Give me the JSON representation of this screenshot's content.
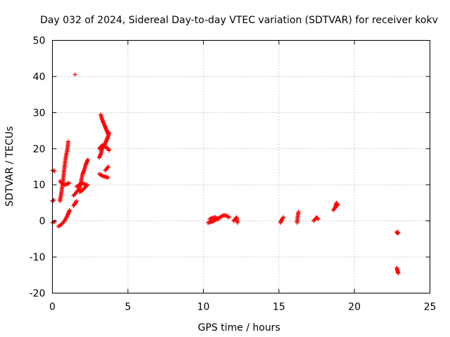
{
  "chart_data": {
    "type": "scatter",
    "title": "Day 032 of 2024, Sidereal Day-to-day VTEC variation (SDTVAR) for receiver kokv",
    "xlabel": "GPS time / hours",
    "ylabel": "SDTVAR / TECUs",
    "xlim": [
      0,
      25
    ],
    "ylim": [
      -20,
      50
    ],
    "xticks": [
      "0",
      "5",
      "10",
      "15",
      "20",
      "25"
    ],
    "yticks": [
      "-20",
      "-10",
      "0",
      "10",
      "20",
      "30",
      "40",
      "50"
    ],
    "grid": true,
    "marker": "plus",
    "color": "#ff0000",
    "series": [
      {
        "segments": [
          [
            [
              0.0,
              14.0
            ],
            [
              0.15,
              13.8
            ]
          ],
          [
            [
              0.0,
              5.5
            ],
            [
              0.1,
              5.8
            ]
          ],
          [
            [
              0.0,
              -0.5
            ],
            [
              0.15,
              -0.2
            ]
          ],
          [
            [
              0.4,
              -1.5
            ],
            [
              0.6,
              -1.0
            ],
            [
              0.8,
              0.0
            ],
            [
              1.0,
              1.5
            ],
            [
              1.1,
              2.5
            ],
            [
              1.15,
              3.0
            ]
          ],
          [
            [
              0.5,
              5.5
            ],
            [
              0.6,
              8.0
            ],
            [
              0.7,
              11.0
            ],
            [
              0.8,
              15.0
            ],
            [
              0.9,
              18.0
            ],
            [
              1.0,
              20.0
            ],
            [
              1.05,
              22.0
            ]
          ],
          [
            [
              0.5,
              11.0
            ],
            [
              0.6,
              10.5
            ],
            [
              0.8,
              10.0
            ],
            [
              1.0,
              10.2
            ],
            [
              1.1,
              10.5
            ]
          ],
          [
            [
              1.5,
              40.5
            ]
          ],
          [
            [
              1.4,
              4.2
            ],
            [
              1.5,
              4.8
            ],
            [
              1.6,
              5.5
            ]
          ],
          [
            [
              1.4,
              7.0
            ],
            [
              1.6,
              8.0
            ],
            [
              1.8,
              9.0
            ],
            [
              1.9,
              11.0
            ],
            [
              2.0,
              13.0
            ],
            [
              2.1,
              14.0
            ],
            [
              2.2,
              15.5
            ],
            [
              2.3,
              16.5
            ],
            [
              2.35,
              17.0
            ]
          ],
          [
            [
              1.6,
              9.5
            ],
            [
              1.8,
              10.0
            ],
            [
              2.0,
              10.5
            ],
            [
              2.2,
              10.0
            ],
            [
              2.3,
              9.8
            ]
          ],
          [
            [
              1.8,
              8.0
            ],
            [
              2.0,
              8.5
            ],
            [
              2.2,
              9.5
            ],
            [
              2.3,
              10.0
            ]
          ],
          [
            [
              3.1,
              17.5
            ],
            [
              3.2,
              18.5
            ],
            [
              3.3,
              20.0
            ],
            [
              3.4,
              20.5
            ],
            [
              3.5,
              21.5
            ],
            [
              3.6,
              22.5
            ],
            [
              3.7,
              23.5
            ],
            [
              3.75,
              24.5
            ]
          ],
          [
            [
              3.1,
              20.0
            ],
            [
              3.3,
              21.0
            ],
            [
              3.5,
              20.5
            ],
            [
              3.7,
              20.0
            ],
            [
              3.75,
              19.5
            ]
          ],
          [
            [
              3.2,
              29.5
            ],
            [
              3.3,
              28.0
            ],
            [
              3.4,
              27.0
            ],
            [
              3.5,
              26.0
            ],
            [
              3.6,
              25.0
            ],
            [
              3.7,
              24.0
            ]
          ],
          [
            [
              3.1,
              13.0
            ],
            [
              3.3,
              12.5
            ],
            [
              3.5,
              12.2
            ],
            [
              3.7,
              12.0
            ]
          ],
          [
            [
              3.5,
              14.0
            ],
            [
              3.6,
              14.5
            ],
            [
              3.7,
              15.0
            ]
          ],
          [
            [
              10.3,
              -0.5
            ],
            [
              10.5,
              -0.3
            ],
            [
              10.7,
              0.0
            ],
            [
              10.9,
              0.5
            ],
            [
              11.1,
              1.0
            ],
            [
              11.3,
              1.5
            ],
            [
              11.5,
              1.5
            ],
            [
              11.7,
              1.0
            ]
          ],
          [
            [
              10.4,
              0.5
            ],
            [
              10.6,
              0.8
            ],
            [
              10.8,
              1.0
            ],
            [
              11.0,
              0.5
            ]
          ],
          [
            [
              12.0,
              0.0
            ],
            [
              12.1,
              0.5
            ],
            [
              12.2,
              1.0
            ],
            [
              12.25,
              -0.5
            ]
          ],
          [
            [
              15.1,
              -0.5
            ],
            [
              15.2,
              0.5
            ],
            [
              15.3,
              1.0
            ]
          ],
          [
            [
              16.2,
              -0.5
            ],
            [
              16.25,
              1.5
            ],
            [
              16.3,
              2.5
            ]
          ],
          [
            [
              17.3,
              0.0
            ],
            [
              17.4,
              0.5
            ],
            [
              17.5,
              1.0
            ],
            [
              17.6,
              0.5
            ]
          ],
          [
            [
              18.6,
              3.0
            ],
            [
              18.7,
              3.5
            ],
            [
              18.8,
              4.0
            ],
            [
              18.9,
              4.5
            ],
            [
              18.8,
              5.0
            ],
            [
              18.7,
              3.5
            ]
          ],
          [
            [
              22.8,
              -3.0
            ],
            [
              22.85,
              -3.5
            ],
            [
              22.9,
              -3.2
            ]
          ],
          [
            [
              22.8,
              -13.0
            ],
            [
              22.85,
              -13.8
            ],
            [
              22.9,
              -14.5
            ]
          ]
        ]
      }
    ]
  }
}
